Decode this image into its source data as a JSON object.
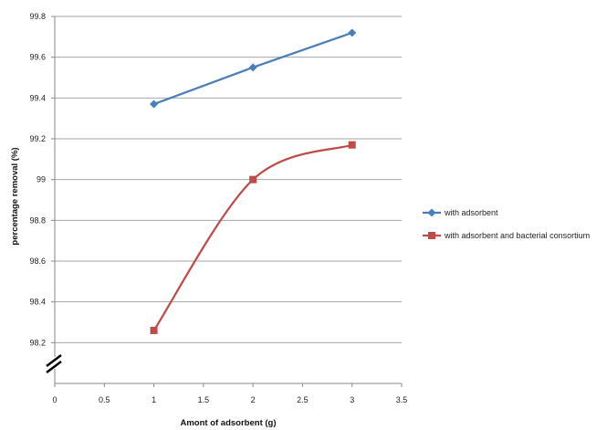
{
  "chart_data": {
    "type": "line",
    "title": "",
    "xlabel": "Amont of adsorbent (g)",
    "ylabel": "percentage removal (%)",
    "xlim": [
      0,
      3.5
    ],
    "ylim": [
      98.0,
      99.8
    ],
    "x_ticks": [
      "0",
      "0.5",
      "1",
      "1.5",
      "2",
      "2.5",
      "3",
      "3.5"
    ],
    "y_ticks": [
      "98.2",
      "98.4",
      "98.6",
      "98.8",
      "99",
      "99.2",
      "99.4",
      "99.6",
      "99.8"
    ],
    "axis_break": "y",
    "grid": "horizontal",
    "legend_position": "right",
    "series": [
      {
        "name": "with adsorbent",
        "color": "#4a7ebb",
        "marker": "diamond",
        "smooth": false,
        "x": [
          1,
          2,
          3
        ],
        "y": [
          99.37,
          99.55,
          99.72
        ]
      },
      {
        "name": "with adsorbent and bacterial consortium",
        "color": "#be4b48",
        "marker": "square",
        "smooth": true,
        "x": [
          1,
          2,
          3
        ],
        "y": [
          98.26,
          99.0,
          99.17
        ]
      }
    ]
  }
}
